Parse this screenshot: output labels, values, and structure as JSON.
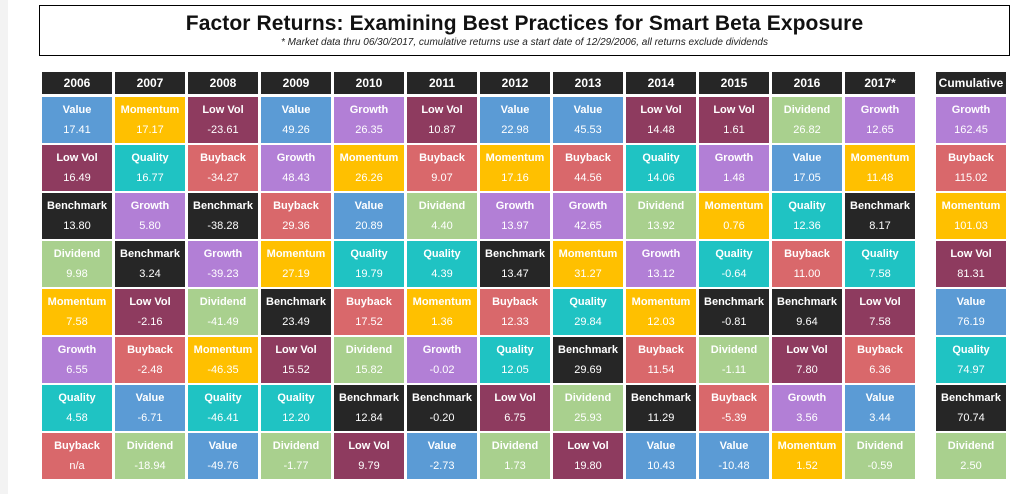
{
  "title": "Factor Returns:  Examining Best Practices for Smart Beta Exposure",
  "subtitle": "* Market data thru 06/30/2017, cumulative returns use a start date of 12/29/2006, all returns exclude dividends",
  "colors": {
    "Value": "#5B9BD5",
    "Momentum": "#FFC000",
    "Low Vol": "#8E3B5F",
    "Growth": "#B27FD6",
    "Quality": "#1FC3C3",
    "Buyback": "#D9686B",
    "Benchmark": "#262626",
    "Dividend": "#A9D08E"
  },
  "chart_data": {
    "type": "table",
    "title": "Factor Returns:  Examining Best Practices for Smart Beta Exposure",
    "columns": [
      {
        "header": "2006",
        "cells": [
          {
            "factor": "Value",
            "value": "17.41"
          },
          {
            "factor": "Low Vol",
            "value": "16.49"
          },
          {
            "factor": "Benchmark",
            "value": "13.80"
          },
          {
            "factor": "Dividend",
            "value": "9.98"
          },
          {
            "factor": "Momentum",
            "value": "7.58"
          },
          {
            "factor": "Growth",
            "value": "6.55"
          },
          {
            "factor": "Quality",
            "value": "4.58"
          },
          {
            "factor": "Buyback",
            "value": "n/a"
          }
        ]
      },
      {
        "header": "2007",
        "cells": [
          {
            "factor": "Momentum",
            "value": "17.17"
          },
          {
            "factor": "Quality",
            "value": "16.77"
          },
          {
            "factor": "Growth",
            "value": "5.80"
          },
          {
            "factor": "Benchmark",
            "value": "3.24"
          },
          {
            "factor": "Low Vol",
            "value": "-2.16"
          },
          {
            "factor": "Buyback",
            "value": "-2.48"
          },
          {
            "factor": "Value",
            "value": "-6.71"
          },
          {
            "factor": "Dividend",
            "value": "-18.94"
          }
        ]
      },
      {
        "header": "2008",
        "cells": [
          {
            "factor": "Low Vol",
            "value": "-23.61"
          },
          {
            "factor": "Buyback",
            "value": "-34.27"
          },
          {
            "factor": "Benchmark",
            "value": "-38.28"
          },
          {
            "factor": "Growth",
            "value": "-39.23"
          },
          {
            "factor": "Dividend",
            "value": "-41.49"
          },
          {
            "factor": "Momentum",
            "value": "-46.35"
          },
          {
            "factor": "Quality",
            "value": "-46.41"
          },
          {
            "factor": "Value",
            "value": "-49.76"
          }
        ]
      },
      {
        "header": "2009",
        "cells": [
          {
            "factor": "Value",
            "value": "49.26"
          },
          {
            "factor": "Growth",
            "value": "48.43"
          },
          {
            "factor": "Buyback",
            "value": "29.36"
          },
          {
            "factor": "Momentum",
            "value": "27.19"
          },
          {
            "factor": "Benchmark",
            "value": "23.49"
          },
          {
            "factor": "Low Vol",
            "value": "15.52"
          },
          {
            "factor": "Quality",
            "value": "12.20"
          },
          {
            "factor": "Dividend",
            "value": "-1.77"
          }
        ]
      },
      {
        "header": "2010",
        "cells": [
          {
            "factor": "Growth",
            "value": "26.35"
          },
          {
            "factor": "Momentum",
            "value": "26.26"
          },
          {
            "factor": "Value",
            "value": "20.89"
          },
          {
            "factor": "Quality",
            "value": "19.79"
          },
          {
            "factor": "Buyback",
            "value": "17.52"
          },
          {
            "factor": "Dividend",
            "value": "15.82"
          },
          {
            "factor": "Benchmark",
            "value": "12.84"
          },
          {
            "factor": "Low Vol",
            "value": "9.79"
          }
        ]
      },
      {
        "header": "2011",
        "cells": [
          {
            "factor": "Low Vol",
            "value": "10.87"
          },
          {
            "factor": "Buyback",
            "value": "9.07"
          },
          {
            "factor": "Dividend",
            "value": "4.40"
          },
          {
            "factor": "Quality",
            "value": "4.39"
          },
          {
            "factor": "Momentum",
            "value": "1.36"
          },
          {
            "factor": "Growth",
            "value": "-0.02"
          },
          {
            "factor": "Benchmark",
            "value": "-0.20"
          },
          {
            "factor": "Value",
            "value": "-2.73"
          }
        ]
      },
      {
        "header": "2012",
        "cells": [
          {
            "factor": "Value",
            "value": "22.98"
          },
          {
            "factor": "Momentum",
            "value": "17.16"
          },
          {
            "factor": "Growth",
            "value": "13.97"
          },
          {
            "factor": "Benchmark",
            "value": "13.47"
          },
          {
            "factor": "Buyback",
            "value": "12.33"
          },
          {
            "factor": "Quality",
            "value": "12.05"
          },
          {
            "factor": "Low Vol",
            "value": "6.75"
          },
          {
            "factor": "Dividend",
            "value": "1.73"
          }
        ]
      },
      {
        "header": "2013",
        "cells": [
          {
            "factor": "Value",
            "value": "45.53"
          },
          {
            "factor": "Buyback",
            "value": "44.56"
          },
          {
            "factor": "Growth",
            "value": "42.65"
          },
          {
            "factor": "Momentum",
            "value": "31.27"
          },
          {
            "factor": "Quality",
            "value": "29.84"
          },
          {
            "factor": "Benchmark",
            "value": "29.69"
          },
          {
            "factor": "Dividend",
            "value": "25.93"
          },
          {
            "factor": "Low Vol",
            "value": "19.80"
          }
        ]
      },
      {
        "header": "2014",
        "cells": [
          {
            "factor": "Low Vol",
            "value": "14.48"
          },
          {
            "factor": "Quality",
            "value": "14.06"
          },
          {
            "factor": "Dividend",
            "value": "13.92"
          },
          {
            "factor": "Growth",
            "value": "13.12"
          },
          {
            "factor": "Momentum",
            "value": "12.03"
          },
          {
            "factor": "Buyback",
            "value": "11.54"
          },
          {
            "factor": "Benchmark",
            "value": "11.29"
          },
          {
            "factor": "Value",
            "value": "10.43"
          }
        ]
      },
      {
        "header": "2015",
        "cells": [
          {
            "factor": "Low Vol",
            "value": "1.61"
          },
          {
            "factor": "Growth",
            "value": "1.48"
          },
          {
            "factor": "Momentum",
            "value": "0.76"
          },
          {
            "factor": "Quality",
            "value": "-0.64"
          },
          {
            "factor": "Benchmark",
            "value": "-0.81"
          },
          {
            "factor": "Dividend",
            "value": "-1.11"
          },
          {
            "factor": "Buyback",
            "value": "-5.39"
          },
          {
            "factor": "Value",
            "value": "-10.48"
          }
        ]
      },
      {
        "header": "2016",
        "cells": [
          {
            "factor": "Dividend",
            "value": "26.82"
          },
          {
            "factor": "Value",
            "value": "17.05"
          },
          {
            "factor": "Quality",
            "value": "12.36"
          },
          {
            "factor": "Buyback",
            "value": "11.00"
          },
          {
            "factor": "Benchmark",
            "value": "9.64"
          },
          {
            "factor": "Low Vol",
            "value": "7.80"
          },
          {
            "factor": "Growth",
            "value": "3.56"
          },
          {
            "factor": "Momentum",
            "value": "1.52"
          }
        ]
      },
      {
        "header": "2017*",
        "cells": [
          {
            "factor": "Growth",
            "value": "12.65"
          },
          {
            "factor": "Momentum",
            "value": "11.48"
          },
          {
            "factor": "Benchmark",
            "value": "8.17"
          },
          {
            "factor": "Quality",
            "value": "7.58"
          },
          {
            "factor": "Low Vol",
            "value": "7.58"
          },
          {
            "factor": "Buyback",
            "value": "6.36"
          },
          {
            "factor": "Value",
            "value": "3.44"
          },
          {
            "factor": "Dividend",
            "value": "-0.59"
          }
        ]
      },
      {
        "header": "Cumulative",
        "cells": [
          {
            "factor": "Growth",
            "value": "162.45"
          },
          {
            "factor": "Buyback",
            "value": "115.02"
          },
          {
            "factor": "Momentum",
            "value": "101.03"
          },
          {
            "factor": "Low Vol",
            "value": "81.31"
          },
          {
            "factor": "Value",
            "value": "76.19"
          },
          {
            "factor": "Quality",
            "value": "74.97"
          },
          {
            "factor": "Benchmark",
            "value": "70.74"
          },
          {
            "factor": "Dividend",
            "value": "2.50"
          }
        ]
      }
    ]
  }
}
